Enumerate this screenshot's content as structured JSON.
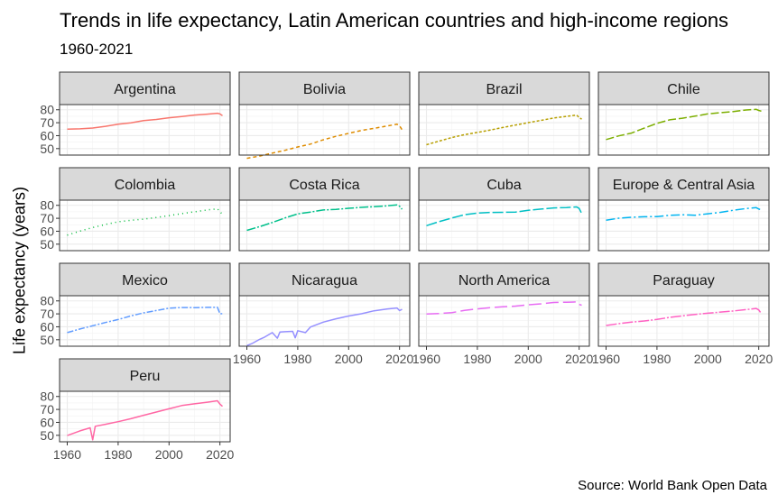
{
  "header": {
    "title": "Trends in life expectancy, Latin American countries and high-income regions",
    "subtitle": "1960-2021",
    "caption": "Source: World Bank Open Data"
  },
  "chart_data": {
    "type": "line",
    "faceted": true,
    "ylabel": "Life expectancy (years)",
    "xlim": [
      1960,
      2021
    ],
    "ylim": [
      45,
      84
    ],
    "x_ticks": [
      1960,
      1980,
      2000,
      2020
    ],
    "y_ticks": [
      50,
      60,
      70,
      80
    ],
    "grid": true,
    "series": [
      {
        "name": "Argentina",
        "color": "#F8766D",
        "dash": "solid",
        "points": [
          [
            1960,
            65.0
          ],
          [
            1965,
            65.3
          ],
          [
            1970,
            65.9
          ],
          [
            1975,
            67.2
          ],
          [
            1980,
            68.8
          ],
          [
            1985,
            69.9
          ],
          [
            1990,
            71.6
          ],
          [
            1995,
            72.5
          ],
          [
            2000,
            73.8
          ],
          [
            2005,
            74.8
          ],
          [
            2010,
            75.9
          ],
          [
            2015,
            76.6
          ],
          [
            2019,
            77.3
          ],
          [
            2020,
            76.8
          ],
          [
            2021,
            75.4
          ]
        ]
      },
      {
        "name": "Bolivia",
        "color": "#DE8C00",
        "dash": "4,3",
        "points": [
          [
            1960,
            42.5
          ],
          [
            1965,
            44.2
          ],
          [
            1970,
            46.5
          ],
          [
            1975,
            48.7
          ],
          [
            1980,
            51.3
          ],
          [
            1985,
            53.5
          ],
          [
            1990,
            56.8
          ],
          [
            1995,
            59.5
          ],
          [
            2000,
            61.8
          ],
          [
            2005,
            64.0
          ],
          [
            2010,
            65.7
          ],
          [
            2015,
            67.4
          ],
          [
            2019,
            68.8
          ],
          [
            2020,
            67.6
          ],
          [
            2021,
            64.5
          ]
        ]
      },
      {
        "name": "Brazil",
        "color": "#B79F00",
        "dash": "3,2",
        "points": [
          [
            1960,
            53.0
          ],
          [
            1965,
            55.8
          ],
          [
            1970,
            58.6
          ],
          [
            1975,
            60.8
          ],
          [
            1980,
            62.5
          ],
          [
            1985,
            64.3
          ],
          [
            1990,
            66.3
          ],
          [
            1995,
            68.2
          ],
          [
            2000,
            70.1
          ],
          [
            2005,
            71.8
          ],
          [
            2010,
            73.6
          ],
          [
            2015,
            74.9
          ],
          [
            2019,
            75.9
          ],
          [
            2020,
            74.0
          ],
          [
            2021,
            72.8
          ]
        ]
      },
      {
        "name": "Chile",
        "color": "#7CAE00",
        "dash": "9,3",
        "points": [
          [
            1960,
            57.0
          ],
          [
            1965,
            59.8
          ],
          [
            1970,
            62.0
          ],
          [
            1975,
            65.8
          ],
          [
            1980,
            69.5
          ],
          [
            1985,
            72.2
          ],
          [
            1990,
            73.5
          ],
          [
            1995,
            75.1
          ],
          [
            2000,
            76.8
          ],
          [
            2005,
            77.8
          ],
          [
            2010,
            78.6
          ],
          [
            2015,
            79.8
          ],
          [
            2019,
            80.3
          ],
          [
            2020,
            79.5
          ],
          [
            2021,
            78.9
          ]
        ]
      },
      {
        "name": "Colombia",
        "color": "#00BA38",
        "dash": "1,4",
        "points": [
          [
            1960,
            57.0
          ],
          [
            1965,
            60.1
          ],
          [
            1970,
            62.8
          ],
          [
            1975,
            65.3
          ],
          [
            1980,
            67.3
          ],
          [
            1985,
            68.5
          ],
          [
            1990,
            69.3
          ],
          [
            1995,
            70.6
          ],
          [
            2000,
            72.0
          ],
          [
            2005,
            73.6
          ],
          [
            2010,
            75.0
          ],
          [
            2015,
            76.4
          ],
          [
            2019,
            77.3
          ],
          [
            2020,
            75.3
          ],
          [
            2021,
            72.8
          ]
        ]
      },
      {
        "name": "Costa Rica",
        "color": "#00C08B",
        "dash": "10,2,2,2",
        "points": [
          [
            1960,
            60.7
          ],
          [
            1965,
            63.5
          ],
          [
            1970,
            66.7
          ],
          [
            1975,
            70.3
          ],
          [
            1980,
            73.4
          ],
          [
            1985,
            74.8
          ],
          [
            1990,
            76.4
          ],
          [
            1995,
            76.8
          ],
          [
            2000,
            77.7
          ],
          [
            2005,
            78.4
          ],
          [
            2010,
            79.0
          ],
          [
            2015,
            79.6
          ],
          [
            2019,
            80.3
          ],
          [
            2020,
            79.3
          ],
          [
            2021,
            77.0
          ]
        ]
      },
      {
        "name": "Cuba",
        "color": "#00BFC4",
        "dash": "12,3",
        "points": [
          [
            1960,
            64.3
          ],
          [
            1965,
            67.4
          ],
          [
            1970,
            70.2
          ],
          [
            1975,
            72.8
          ],
          [
            1980,
            74.0
          ],
          [
            1985,
            74.5
          ],
          [
            1990,
            74.6
          ],
          [
            1995,
            74.8
          ],
          [
            2000,
            76.2
          ],
          [
            2005,
            77.1
          ],
          [
            2010,
            78.0
          ],
          [
            2015,
            78.3
          ],
          [
            2019,
            78.8
          ],
          [
            2020,
            77.6
          ],
          [
            2021,
            73.7
          ]
        ]
      },
      {
        "name": "Europe & Central Asia",
        "color": "#00B4F0",
        "dash": "10,3,2,3",
        "points": [
          [
            1960,
            68.5
          ],
          [
            1965,
            70.1
          ],
          [
            1970,
            70.8
          ],
          [
            1975,
            71.2
          ],
          [
            1980,
            71.3
          ],
          [
            1985,
            72.3
          ],
          [
            1990,
            72.7
          ],
          [
            1995,
            72.4
          ],
          [
            2000,
            73.5
          ],
          [
            2005,
            74.6
          ],
          [
            2010,
            76.2
          ],
          [
            2015,
            77.5
          ],
          [
            2019,
            78.2
          ],
          [
            2020,
            77.1
          ],
          [
            2021,
            76.7
          ]
        ]
      },
      {
        "name": "Mexico",
        "color": "#619CFF",
        "dash": "7,2,2,2",
        "points": [
          [
            1960,
            55.5
          ],
          [
            1965,
            58.3
          ],
          [
            1970,
            60.8
          ],
          [
            1975,
            63.3
          ],
          [
            1980,
            65.6
          ],
          [
            1985,
            68.4
          ],
          [
            1990,
            70.8
          ],
          [
            1995,
            72.6
          ],
          [
            2000,
            74.4
          ],
          [
            2005,
            74.9
          ],
          [
            2010,
            74.8
          ],
          [
            2015,
            75.0
          ],
          [
            2019,
            75.1
          ],
          [
            2020,
            70.1
          ],
          [
            2021,
            70.2
          ]
        ]
      },
      {
        "name": "Nicaragua",
        "color": "#9590FF",
        "dash": "solid",
        "points": [
          [
            1960,
            45.5
          ],
          [
            1962,
            47.0
          ],
          [
            1965,
            50.3
          ],
          [
            1967,
            52.0
          ],
          [
            1970,
            55.5
          ],
          [
            1972,
            51.2
          ],
          [
            1973,
            56.0
          ],
          [
            1975,
            56.2
          ],
          [
            1978,
            56.5
          ],
          [
            1979,
            51.5
          ],
          [
            1980,
            57.0
          ],
          [
            1983,
            55.5
          ],
          [
            1985,
            59.8
          ],
          [
            1990,
            63.6
          ],
          [
            1995,
            66.2
          ],
          [
            2000,
            68.3
          ],
          [
            2005,
            70.1
          ],
          [
            2010,
            72.4
          ],
          [
            2015,
            73.7
          ],
          [
            2019,
            74.5
          ],
          [
            2020,
            72.5
          ],
          [
            2021,
            73.5
          ]
        ]
      },
      {
        "name": "North America",
        "color": "#E76BF3",
        "dash": "14,5",
        "points": [
          [
            1960,
            69.9
          ],
          [
            1965,
            70.3
          ],
          [
            1970,
            70.9
          ],
          [
            1975,
            72.7
          ],
          [
            1980,
            73.8
          ],
          [
            1985,
            74.8
          ],
          [
            1990,
            75.4
          ],
          [
            1995,
            76.0
          ],
          [
            2000,
            77.0
          ],
          [
            2005,
            77.7
          ],
          [
            2010,
            78.8
          ],
          [
            2015,
            79.0
          ],
          [
            2019,
            79.2
          ],
          [
            2020,
            77.3
          ],
          [
            2021,
            76.6
          ]
        ]
      },
      {
        "name": "Paraguay",
        "color": "#FF61C3",
        "dash": "12,2,2,2",
        "points": [
          [
            1960,
            61.0
          ],
          [
            1965,
            62.4
          ],
          [
            1970,
            63.6
          ],
          [
            1975,
            64.5
          ],
          [
            1980,
            65.7
          ],
          [
            1985,
            67.3
          ],
          [
            1990,
            68.5
          ],
          [
            1995,
            69.6
          ],
          [
            2000,
            70.5
          ],
          [
            2005,
            71.4
          ],
          [
            2010,
            72.2
          ],
          [
            2015,
            73.3
          ],
          [
            2019,
            74.2
          ],
          [
            2020,
            73.0
          ],
          [
            2021,
            70.3
          ]
        ]
      },
      {
        "name": "Peru",
        "color": "#FF67A4",
        "dash": "solid",
        "points": [
          [
            1960,
            49.8
          ],
          [
            1965,
            53.4
          ],
          [
            1969,
            55.8
          ],
          [
            1970,
            46.5
          ],
          [
            1971,
            57.0
          ],
          [
            1975,
            58.5
          ],
          [
            1980,
            60.5
          ],
          [
            1985,
            62.8
          ],
          [
            1990,
            65.5
          ],
          [
            1995,
            68.0
          ],
          [
            2000,
            70.5
          ],
          [
            2005,
            73.0
          ],
          [
            2010,
            74.3
          ],
          [
            2015,
            75.6
          ],
          [
            2019,
            76.7
          ],
          [
            2020,
            74.1
          ],
          [
            2021,
            72.4
          ]
        ]
      }
    ]
  }
}
